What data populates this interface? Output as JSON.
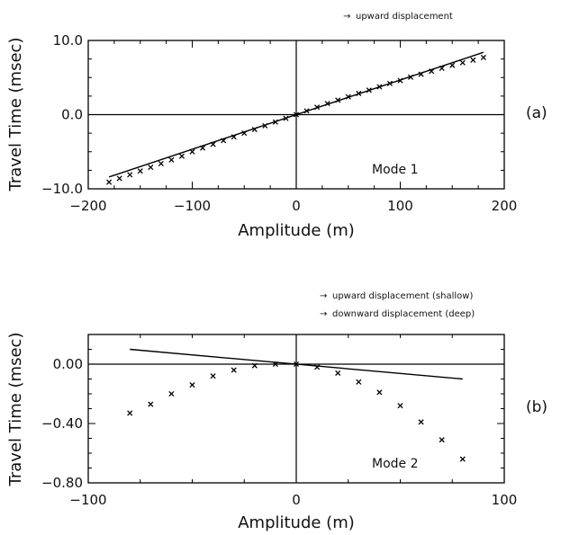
{
  "chart_data": [
    {
      "type": "scatter",
      "panel_label": "(a)",
      "annotation": "Mode 1",
      "xlabel": "Amplitude (m)",
      "ylabel": "Travel Time (msec)",
      "xlim": [
        -200,
        200
      ],
      "ylim": [
        -10,
        10
      ],
      "xticks": [
        -200,
        -100,
        0,
        100,
        200
      ],
      "xtick_labels": [
        "−200",
        "−100",
        "0",
        "100",
        "200"
      ],
      "yticks": [
        -10,
        0,
        10
      ],
      "ytick_labels": [
        "−10.0",
        "0.0",
        "10.0"
      ],
      "legend": [
        {
          "marker": "arrow",
          "label": "upward displacement"
        }
      ],
      "series": [
        {
          "kind": "line",
          "x": [
            -180,
            180
          ],
          "y": [
            -8.4,
            8.4
          ]
        },
        {
          "kind": "markers",
          "marker": "x",
          "x": [
            -180,
            -170,
            -160,
            -150,
            -140,
            -130,
            -120,
            -110,
            -100,
            -90,
            -80,
            -70,
            -60,
            -50,
            -40,
            -30,
            -20,
            -10,
            0,
            10,
            20,
            30,
            40,
            50,
            60,
            70,
            80,
            90,
            100,
            110,
            120,
            130,
            140,
            150,
            160,
            170,
            180
          ],
          "y": [
            -9.1,
            -8.6,
            -8.1,
            -7.6,
            -7.1,
            -6.6,
            -6.1,
            -5.6,
            -5.0,
            -4.5,
            -4.0,
            -3.5,
            -3.0,
            -2.5,
            -2.0,
            -1.5,
            -1.0,
            -0.5,
            0.0,
            0.5,
            1.0,
            1.5,
            1.95,
            2.4,
            2.85,
            3.3,
            3.75,
            4.2,
            4.6,
            5.05,
            5.45,
            5.85,
            6.25,
            6.65,
            7.0,
            7.35,
            7.7
          ]
        }
      ]
    },
    {
      "type": "scatter",
      "panel_label": "(b)",
      "annotation": "Mode 2",
      "xlabel": "Amplitude (m)",
      "ylabel": "Travel Time (msec)",
      "xlim": [
        -100,
        100
      ],
      "ylim": [
        -0.8,
        0.2
      ],
      "xticks": [
        -100,
        0,
        100
      ],
      "xtick_labels": [
        "−100",
        "0",
        "100"
      ],
      "yticks": [
        -0.8,
        -0.4,
        0.0
      ],
      "ytick_labels": [
        "−0.80",
        "−0.40",
        "0.00"
      ],
      "legend": [
        {
          "marker": "arrow",
          "label": "upward displacement (shallow)"
        },
        {
          "marker": "arrow",
          "label": "downward displacement (deep)"
        }
      ],
      "series": [
        {
          "kind": "line",
          "x": [
            -80,
            80
          ],
          "y": [
            0.1,
            -0.1
          ]
        },
        {
          "kind": "markers",
          "marker": "x",
          "x": [
            -80,
            -70,
            -60,
            -50,
            -40,
            -30,
            -20,
            -10,
            0,
            10,
            20,
            30,
            40,
            50,
            60,
            70,
            80
          ],
          "y": [
            -0.33,
            -0.27,
            -0.2,
            -0.14,
            -0.08,
            -0.04,
            -0.01,
            0.0,
            0.0,
            -0.02,
            -0.06,
            -0.12,
            -0.19,
            -0.28,
            -0.39,
            -0.51,
            -0.64
          ]
        }
      ]
    }
  ]
}
